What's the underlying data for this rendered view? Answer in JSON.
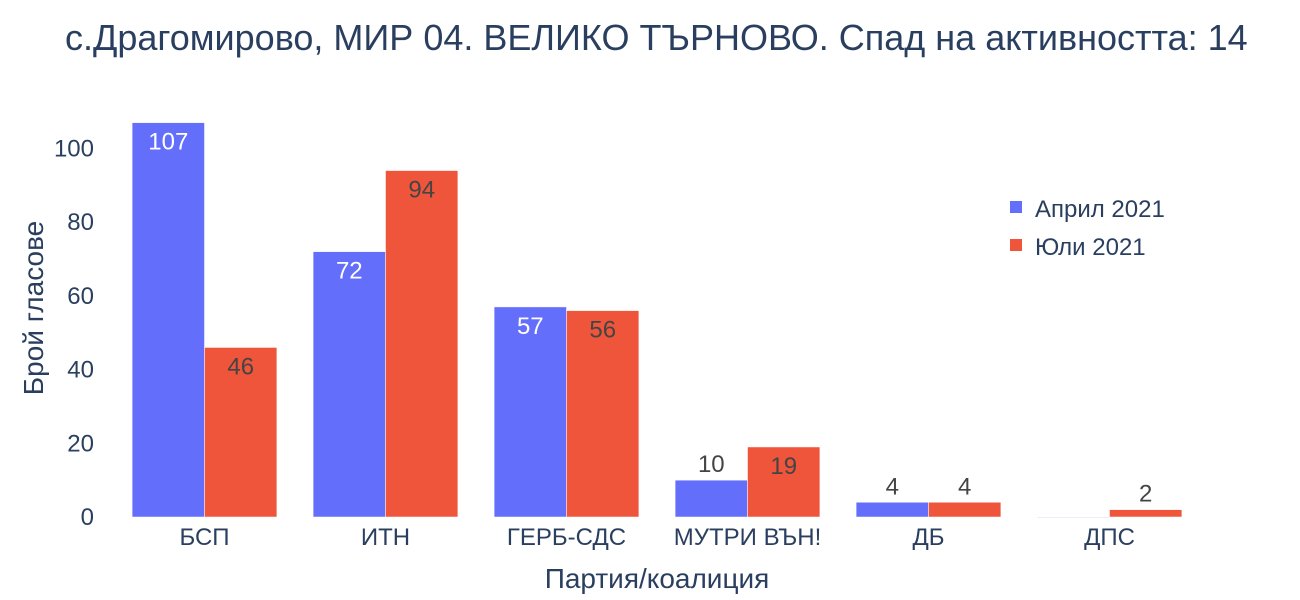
{
  "chart_data": {
    "type": "bar",
    "title": "с.Драгомирово, МИР 04. ВЕЛИКО ТЪРНОВО. Спад на активността: 14",
    "xlabel": "Партия/коалиция",
    "ylabel": "Брой гласове",
    "categories": [
      "БСП",
      "ИТН",
      "ГЕРБ-СДС",
      "МУТРИ ВЪН!",
      "ДБ",
      "ДПС"
    ],
    "series": [
      {
        "name": "Април 2021",
        "color": "#636efa",
        "values": [
          107,
          72,
          57,
          10,
          4,
          0
        ]
      },
      {
        "name": "Юли 2021",
        "color": "#ef553b",
        "values": [
          46,
          94,
          56,
          19,
          4,
          2
        ]
      }
    ],
    "ylim": [
      0,
      112.6
    ],
    "yticks": [
      0,
      20,
      40,
      60,
      80,
      100
    ],
    "legend_position": "top-right",
    "grid": false
  }
}
